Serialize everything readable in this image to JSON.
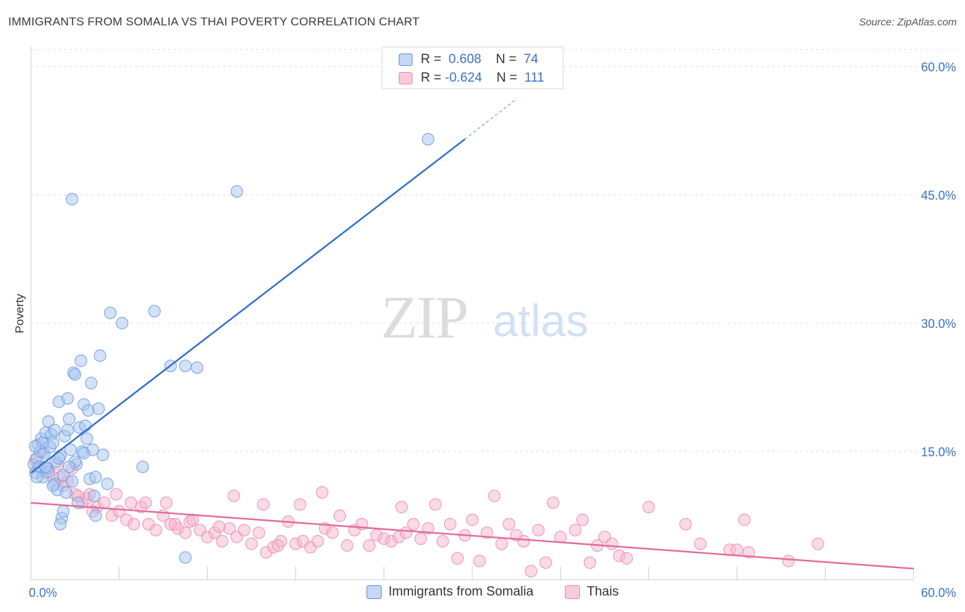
{
  "title": "IMMIGRANTS FROM SOMALIA VS THAI POVERTY CORRELATION CHART",
  "source": "Source: ZipAtlas.com",
  "legend_top": {
    "rows": [
      {
        "r_label": "R =",
        "r_value": "0.608",
        "n_label": "N =",
        "n_value": "74"
      },
      {
        "r_label": "R =",
        "r_value": "-0.624",
        "n_label": "N =",
        "n_value": "111"
      }
    ]
  },
  "legend_bottom": {
    "series1": "Immigrants from Somalia",
    "series2": "Thais"
  },
  "watermark": {
    "part1": "ZIP",
    "part2": "atlas"
  },
  "colors": {
    "blue_fill": "#a8c6ef",
    "blue_stroke": "#6f9ee0",
    "blue_line": "#2e6fcc",
    "pink_fill": "#f6b6cc",
    "pink_stroke": "#eb8fb1",
    "pink_line": "#e46b98",
    "grid": "#dddddd",
    "axis_label": "#3a73c6"
  },
  "chart_data": {
    "type": "scatter",
    "title": "IMMIGRANTS FROM SOMALIA VS THAI POVERTY CORRELATION CHART",
    "xlabel": "",
    "ylabel": "Poverty",
    "xlim": [
      0,
      60
    ],
    "ylim": [
      0,
      62
    ],
    "x_tick_labels": [
      "0.0%",
      "60.0%"
    ],
    "y_ticks": [
      15,
      30,
      45,
      60
    ],
    "y_tick_labels": [
      "15.0%",
      "30.0%",
      "45.0%",
      "60.0%"
    ],
    "grid": true,
    "series": [
      {
        "name": "Immigrants from Somalia",
        "r": 0.608,
        "n": 74,
        "trend": {
          "x0": 0,
          "y0": 12.5,
          "x1": 29.5,
          "y1": 51.5,
          "dash_to_x": 33,
          "dash_to_y": 56.2
        },
        "points": [
          [
            0.2,
            13.5
          ],
          [
            0.3,
            12.5
          ],
          [
            0.4,
            14.2
          ],
          [
            0.5,
            15.8
          ],
          [
            0.6,
            13.2
          ],
          [
            0.7,
            16.5
          ],
          [
            0.8,
            12.0
          ],
          [
            0.9,
            14.8
          ],
          [
            1.0,
            17.2
          ],
          [
            1.1,
            13.0
          ],
          [
            1.2,
            18.5
          ],
          [
            1.3,
            15.5
          ],
          [
            1.4,
            17.0
          ],
          [
            1.5,
            16.0
          ],
          [
            1.6,
            11.2
          ],
          [
            1.7,
            13.8
          ],
          [
            1.8,
            10.5
          ],
          [
            1.9,
            20.8
          ],
          [
            2.0,
            14.5
          ],
          [
            2.1,
            7.2
          ],
          [
            2.2,
            12.2
          ],
          [
            2.3,
            16.8
          ],
          [
            2.4,
            10.2
          ],
          [
            2.5,
            21.2
          ],
          [
            2.6,
            18.8
          ],
          [
            2.7,
            15.2
          ],
          [
            2.8,
            11.5
          ],
          [
            2.9,
            24.2
          ],
          [
            3.0,
            24.0
          ],
          [
            3.1,
            13.5
          ],
          [
            3.2,
            9.0
          ],
          [
            3.3,
            17.8
          ],
          [
            3.4,
            25.6
          ],
          [
            3.5,
            15.0
          ],
          [
            3.6,
            20.5
          ],
          [
            3.7,
            18.0
          ],
          [
            3.8,
            16.5
          ],
          [
            3.9,
            19.8
          ],
          [
            4.0,
            11.8
          ],
          [
            4.1,
            23.0
          ],
          [
            4.2,
            15.2
          ],
          [
            4.3,
            9.8
          ],
          [
            4.4,
            7.5
          ],
          [
            4.6,
            20.0
          ],
          [
            4.7,
            26.2
          ],
          [
            4.9,
            14.6
          ],
          [
            5.2,
            11.2
          ],
          [
            5.4,
            31.2
          ],
          [
            6.2,
            30.0
          ],
          [
            7.6,
            13.2
          ],
          [
            8.4,
            31.4
          ],
          [
            9.5,
            25.0
          ],
          [
            10.5,
            25.0
          ],
          [
            11.3,
            24.8
          ],
          [
            14.0,
            45.4
          ],
          [
            27.0,
            51.5
          ],
          [
            2.8,
            44.5
          ],
          [
            0.6,
            15.0
          ],
          [
            0.8,
            16.0
          ],
          [
            1.2,
            12.6
          ],
          [
            1.5,
            11.0
          ],
          [
            1.6,
            17.5
          ],
          [
            2.0,
            6.5
          ],
          [
            2.2,
            8.0
          ],
          [
            0.4,
            12.0
          ],
          [
            0.3,
            15.6
          ],
          [
            1.0,
            13.2
          ],
          [
            1.9,
            14.2
          ],
          [
            2.5,
            17.5
          ],
          [
            3.0,
            13.8
          ],
          [
            3.6,
            14.8
          ],
          [
            4.4,
            12.0
          ],
          [
            10.5,
            2.6
          ],
          [
            2.6,
            13.2
          ]
        ]
      },
      {
        "name": "Thais",
        "r": -0.624,
        "n": 111,
        "trend": {
          "x0": 0,
          "y0": 9.0,
          "x1": 60,
          "y1": 1.3
        },
        "points": [
          [
            0.3,
            14.0
          ],
          [
            0.5,
            13.2
          ],
          [
            0.8,
            15.0
          ],
          [
            1.2,
            13.0
          ],
          [
            1.5,
            12.0
          ],
          [
            1.8,
            13.5
          ],
          [
            2.2,
            11.0
          ],
          [
            2.5,
            11.5
          ],
          [
            2.8,
            13.0
          ],
          [
            3.0,
            10.0
          ],
          [
            3.5,
            9.0
          ],
          [
            3.8,
            9.5
          ],
          [
            4.0,
            10.0
          ],
          [
            4.5,
            8.5
          ],
          [
            5.0,
            9.0
          ],
          [
            5.5,
            7.5
          ],
          [
            5.8,
            10.0
          ],
          [
            6.0,
            8.0
          ],
          [
            6.5,
            7.0
          ],
          [
            7.0,
            6.5
          ],
          [
            7.5,
            8.5
          ],
          [
            7.8,
            9.0
          ],
          [
            8.0,
            6.5
          ],
          [
            8.5,
            5.8
          ],
          [
            9.0,
            7.5
          ],
          [
            9.2,
            9.0
          ],
          [
            9.5,
            6.5
          ],
          [
            10.0,
            6.0
          ],
          [
            10.5,
            5.5
          ],
          [
            10.8,
            6.8
          ],
          [
            11.0,
            7.0
          ],
          [
            11.5,
            5.8
          ],
          [
            12.0,
            5.0
          ],
          [
            12.5,
            5.5
          ],
          [
            13.0,
            4.5
          ],
          [
            13.5,
            6.0
          ],
          [
            13.8,
            9.8
          ],
          [
            14.0,
            5.0
          ],
          [
            14.5,
            5.8
          ],
          [
            15.0,
            4.2
          ],
          [
            15.5,
            5.5
          ],
          [
            15.8,
            8.8
          ],
          [
            16.0,
            3.2
          ],
          [
            16.5,
            3.8
          ],
          [
            17.0,
            4.5
          ],
          [
            17.5,
            6.8
          ],
          [
            18.0,
            4.2
          ],
          [
            18.3,
            8.8
          ],
          [
            18.5,
            4.5
          ],
          [
            19.0,
            3.8
          ],
          [
            19.5,
            4.5
          ],
          [
            19.8,
            10.2
          ],
          [
            20.0,
            6.0
          ],
          [
            20.5,
            5.5
          ],
          [
            21.0,
            7.5
          ],
          [
            21.5,
            4.0
          ],
          [
            22.0,
            5.8
          ],
          [
            22.5,
            6.5
          ],
          [
            23.0,
            4.0
          ],
          [
            23.5,
            5.2
          ],
          [
            24.0,
            4.8
          ],
          [
            24.5,
            4.5
          ],
          [
            25.0,
            5.0
          ],
          [
            25.2,
            8.5
          ],
          [
            25.5,
            5.5
          ],
          [
            26.0,
            6.5
          ],
          [
            26.5,
            4.8
          ],
          [
            27.0,
            6.0
          ],
          [
            27.5,
            8.8
          ],
          [
            28.0,
            4.5
          ],
          [
            28.5,
            6.5
          ],
          [
            29.0,
            2.5
          ],
          [
            29.5,
            5.2
          ],
          [
            30.0,
            7.0
          ],
          [
            30.5,
            2.2
          ],
          [
            31.0,
            5.5
          ],
          [
            31.5,
            9.8
          ],
          [
            32.0,
            4.2
          ],
          [
            32.5,
            6.5
          ],
          [
            33.0,
            5.2
          ],
          [
            33.5,
            4.5
          ],
          [
            34.0,
            1.0
          ],
          [
            34.5,
            5.8
          ],
          [
            35.0,
            2.0
          ],
          [
            35.5,
            9.0
          ],
          [
            36.0,
            5.0
          ],
          [
            37.0,
            5.8
          ],
          [
            37.5,
            7.0
          ],
          [
            38.0,
            2.0
          ],
          [
            38.5,
            4.0
          ],
          [
            39.0,
            5.0
          ],
          [
            39.5,
            4.2
          ],
          [
            40.0,
            2.8
          ],
          [
            40.5,
            2.5
          ],
          [
            42.0,
            8.5
          ],
          [
            44.5,
            6.5
          ],
          [
            45.5,
            4.2
          ],
          [
            47.5,
            3.5
          ],
          [
            48.0,
            3.5
          ],
          [
            48.5,
            7.0
          ],
          [
            48.8,
            3.2
          ],
          [
            51.5,
            2.2
          ],
          [
            53.5,
            4.2
          ],
          [
            1.0,
            12.5
          ],
          [
            2.0,
            12.0
          ],
          [
            3.2,
            9.8
          ],
          [
            4.2,
            8.0
          ],
          [
            6.8,
            9.0
          ],
          [
            9.8,
            6.5
          ],
          [
            12.8,
            6.2
          ],
          [
            16.8,
            4.0
          ]
        ]
      }
    ]
  }
}
